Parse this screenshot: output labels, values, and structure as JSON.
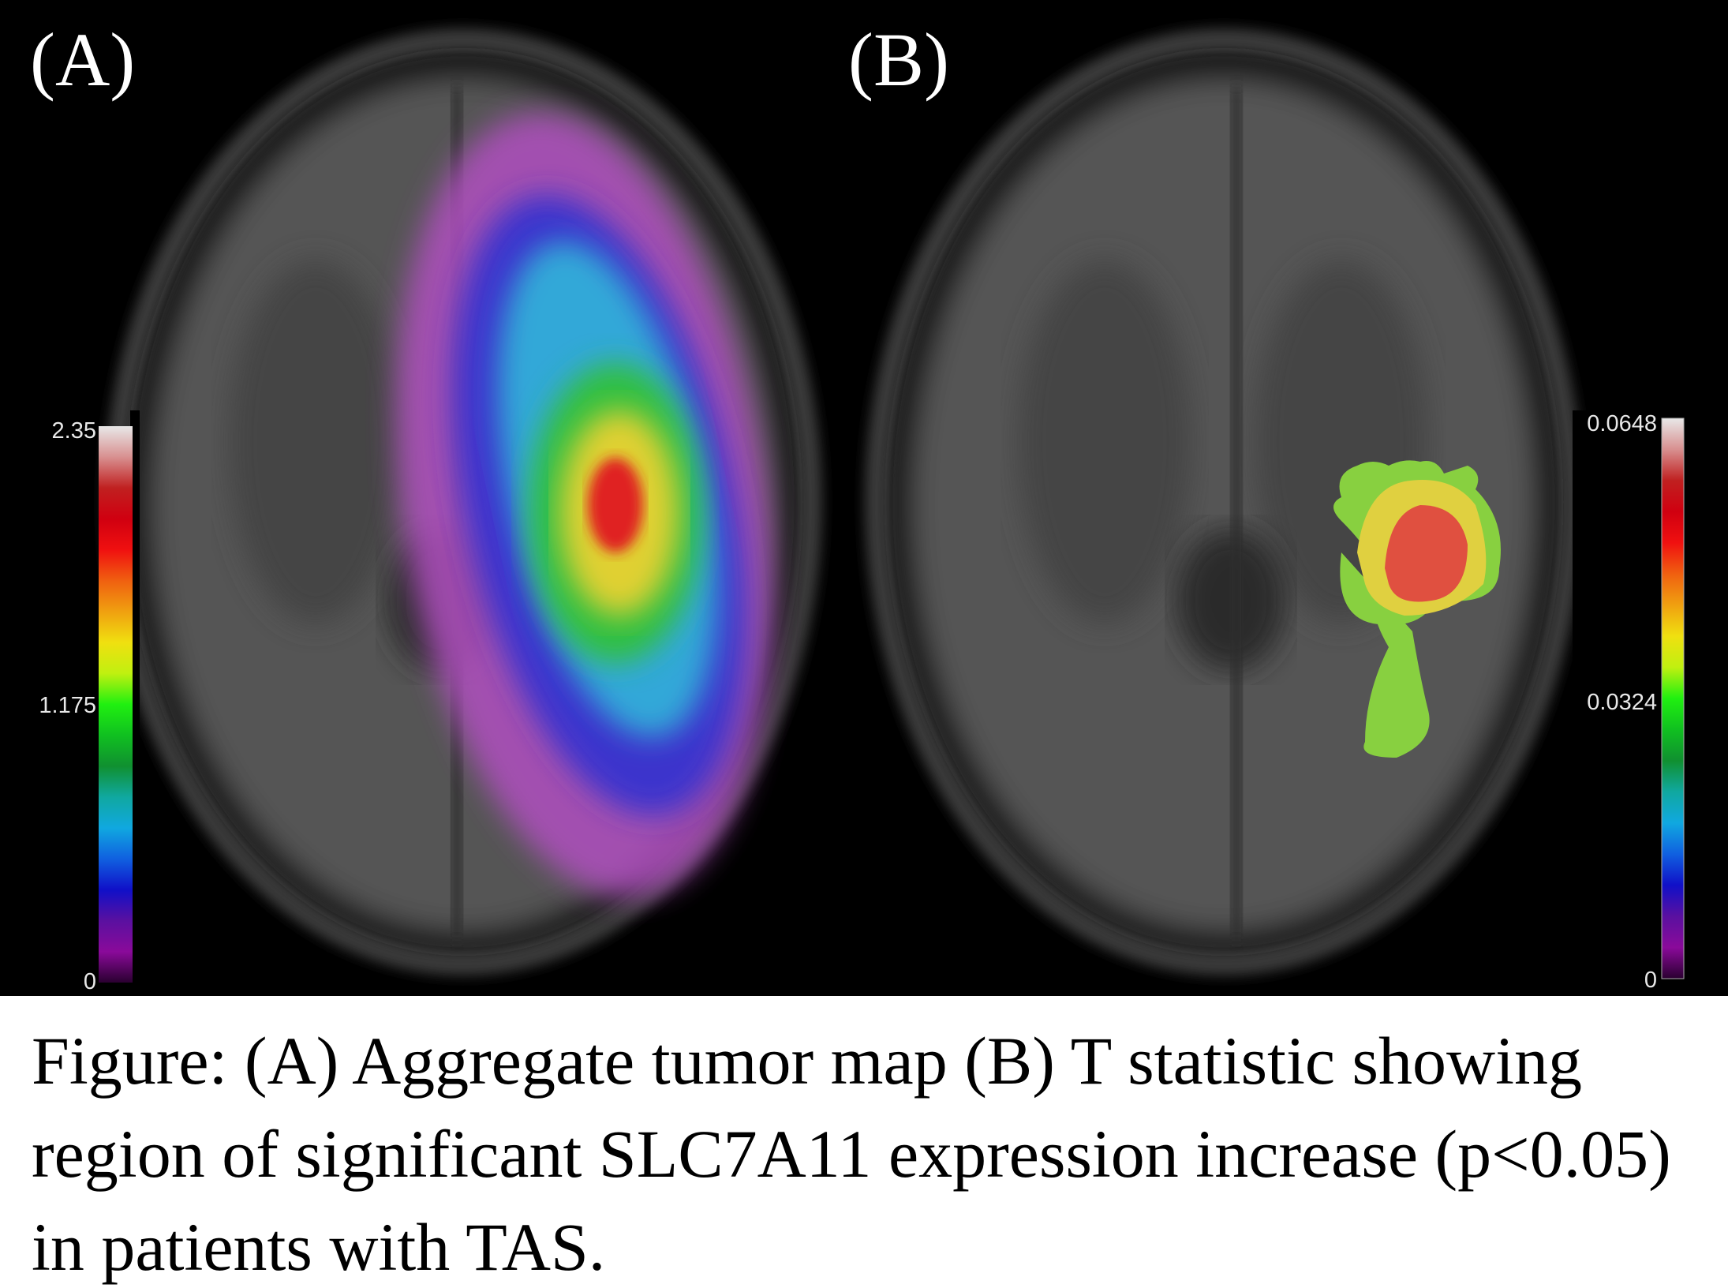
{
  "panels": [
    {
      "label": "(A)",
      "colorbar": {
        "max": "2.35",
        "mid": "1.175",
        "min": "0"
      }
    },
    {
      "label": "(B)",
      "colorbar": {
        "max": "0.0648",
        "mid": "0.0324",
        "min": "0"
      }
    }
  ],
  "colormap": [
    "#2a0030",
    "#8a0a9a",
    "#5a10a0",
    "#1010c8",
    "#1060e0",
    "#10a8e0",
    "#10a8a0",
    "#109030",
    "#10c020",
    "#20f010",
    "#c0f010",
    "#f0e010",
    "#f0a010",
    "#f06010",
    "#f01010",
    "#d00010",
    "#c02020",
    "#d89090",
    "#e8e8e8"
  ],
  "caption": "Figure: (A) Aggregate tumor map (B) T statistic showing region of significant SLC7A11 expression increase (p<0.05) in patients with TAS."
}
